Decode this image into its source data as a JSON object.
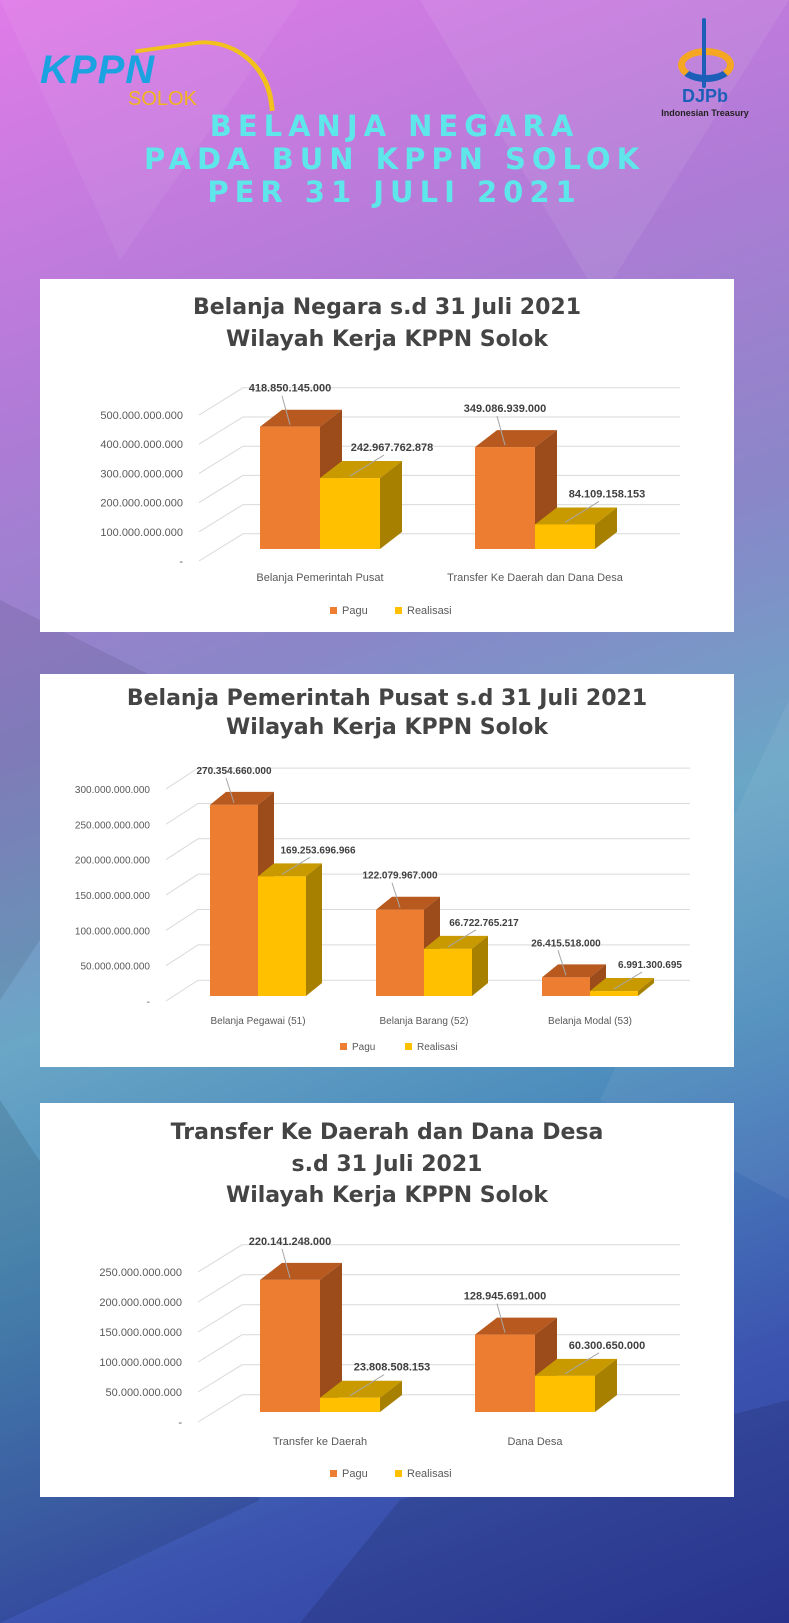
{
  "header": {
    "logo_left": "KPPN",
    "logo_left_sub": "SOLOK",
    "logo_right": "DJPb",
    "logo_right_sub": "Indonesian Treasury",
    "title_lines": [
      "BELANJA NEGARA",
      "PADA BUN KPPN SOLOK",
      "PER 31 JULI 2021"
    ]
  },
  "colors": {
    "pagu": "#ed7d31",
    "realisasi": "#ffc000",
    "title": "#5ee6ea"
  },
  "chart_data": [
    {
      "type": "bar",
      "title_lines": [
        "Belanja Negara s.d 31 Juli 2021",
        "Wilayah Kerja KPPN Solok"
      ],
      "categories": [
        "Belanja Pemerintah Pusat",
        "Transfer Ke Daerah dan Dana Desa"
      ],
      "series": [
        {
          "name": "Pagu",
          "values": [
            418850145000,
            349086939000
          ],
          "labels": [
            "418.850.145.000",
            "349.086.939.000"
          ]
        },
        {
          "name": "Realisasi",
          "values": [
            242967762878,
            84109158153
          ],
          "labels": [
            "242.967.762.878",
            "84.109.158.153"
          ]
        }
      ],
      "yticks": [
        "-",
        "100.000.000.000",
        "200.000.000.000",
        "300.000.000.000",
        "400.000.000.000",
        "500.000.000.000"
      ],
      "ytick_values": [
        0,
        100000000000,
        200000000000,
        300000000000,
        400000000000,
        500000000000
      ],
      "ylim": [
        0,
        500000000000
      ],
      "legend": "bottom",
      "grid": true
    },
    {
      "type": "bar",
      "title_lines": [
        "Belanja Pemerintah Pusat s.d 31 Juli 2021",
        "Wilayah Kerja KPPN Solok"
      ],
      "categories": [
        "Belanja Pegawai (51)",
        "Belanja Barang (52)",
        "Belanja Modal (53)"
      ],
      "series": [
        {
          "name": "Pagu",
          "values": [
            270354660000,
            122079967000,
            26415518000
          ],
          "labels": [
            "270.354.660.000",
            "122.079.967.000",
            "26.415.518.000"
          ]
        },
        {
          "name": "Realisasi",
          "values": [
            169253696966,
            66722765217,
            6991300695
          ],
          "labels": [
            "169.253.696.966",
            "66.722.765.217",
            "6.991.300.695"
          ]
        }
      ],
      "yticks": [
        "-",
        "50.000.000.000",
        "100.000.000.000",
        "150.000.000.000",
        "200.000.000.000",
        "250.000.000.000",
        "300.000.000.000"
      ],
      "ytick_values": [
        0,
        50000000000,
        100000000000,
        150000000000,
        200000000000,
        250000000000,
        300000000000
      ],
      "ylim": [
        0,
        300000000000
      ],
      "legend": "bottom",
      "grid": true
    },
    {
      "type": "bar",
      "title_lines": [
        "Transfer Ke Daerah dan Dana Desa",
        "s.d 31 Juli 2021",
        "Wilayah Kerja KPPN Solok"
      ],
      "categories": [
        "Transfer ke Daerah",
        "Dana Desa"
      ],
      "series": [
        {
          "name": "Pagu",
          "values": [
            220141248000,
            128945691000
          ],
          "labels": [
            "220.141.248.000",
            "128.945.691.000"
          ]
        },
        {
          "name": "Realisasi",
          "values": [
            23808508153,
            60300650000
          ],
          "labels": [
            "23.808.508.153",
            "60.300.650.000"
          ]
        }
      ],
      "yticks": [
        "-",
        "50.000.000.000",
        "100.000.000.000",
        "150.000.000.000",
        "200.000.000.000",
        "250.000.000.000"
      ],
      "ytick_values": [
        0,
        50000000000,
        100000000000,
        150000000000,
        200000000000,
        250000000000
      ],
      "ylim": [
        0,
        250000000000
      ],
      "legend": "bottom",
      "grid": true
    }
  ]
}
